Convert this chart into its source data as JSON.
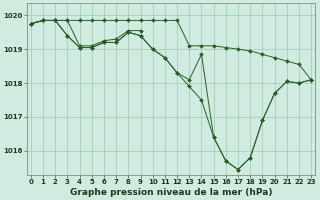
{
  "title": "Graphe pression niveau de la mer (hPa)",
  "bg_color": "#d0ece0",
  "grid_color": "#a0c8b0",
  "line_color": "#2a5e2a",
  "series": [
    {
      "x": [
        0,
        1,
        2,
        3,
        4,
        5,
        6,
        7,
        8,
        9,
        10,
        11,
        12,
        13,
        14,
        15,
        16,
        17,
        18,
        19,
        20,
        21,
        22,
        23
      ],
      "y": [
        1019.75,
        1019.85,
        1019.85,
        1019.85,
        1019.85,
        1019.85,
        1019.85,
        1019.85,
        1019.85,
        1019.85,
        1019.85,
        1019.85,
        1019.85,
        1019.1,
        1019.1,
        1019.1,
        1019.05,
        1019.0,
        1018.95,
        1018.85,
        1018.75,
        1018.65,
        1018.55,
        1018.1
      ]
    },
    {
      "x": [
        0,
        1,
        2,
        3,
        4,
        5,
        6,
        7,
        8,
        9,
        10,
        11,
        12,
        13,
        14,
        15,
        16,
        17,
        18,
        19,
        20,
        21,
        22,
        23
      ],
      "y": [
        1019.75,
        1019.85,
        1019.85,
        1019.4,
        1019.05,
        1019.05,
        1019.2,
        1019.2,
        1019.5,
        1019.4,
        1019.0,
        1018.75,
        1018.3,
        1017.9,
        1017.5,
        1016.4,
        1015.7,
        1015.45,
        1015.8,
        1016.9,
        1017.7,
        1018.05,
        1018.0,
        1018.1
      ]
    },
    {
      "x": [
        0,
        1,
        2,
        3,
        4,
        5,
        6,
        7,
        8,
        9,
        10,
        11,
        12,
        13,
        14,
        15,
        16,
        17,
        18,
        19,
        20,
        21,
        22,
        23
      ],
      "y": [
        1019.75,
        1019.85,
        1019.85,
        1019.4,
        1019.05,
        1019.05,
        1019.2,
        1019.2,
        1019.5,
        1019.4,
        1019.0,
        1018.75,
        1018.3,
        1018.1,
        1018.85,
        1016.4,
        1015.7,
        1015.45,
        1015.8,
        1016.9,
        1017.7,
        1018.05,
        1018.0,
        1018.1
      ]
    },
    {
      "x": [
        0,
        1,
        2,
        3,
        4,
        5,
        6,
        7,
        8,
        9
      ],
      "y": [
        1019.75,
        1019.85,
        1019.85,
        1019.85,
        1019.1,
        1019.1,
        1019.25,
        1019.3,
        1019.55,
        1019.55
      ]
    }
  ],
  "xlim": [
    -0.3,
    23.3
  ],
  "ylim": [
    1015.3,
    1020.35
  ],
  "yticks": [
    1016,
    1017,
    1018,
    1019,
    1020
  ],
  "xticks": [
    0,
    1,
    2,
    3,
    4,
    5,
    6,
    7,
    8,
    9,
    10,
    11,
    12,
    13,
    14,
    15,
    16,
    17,
    18,
    19,
    20,
    21,
    22,
    23
  ],
  "title_fontsize": 6.5,
  "tick_fontsize": 5.0
}
